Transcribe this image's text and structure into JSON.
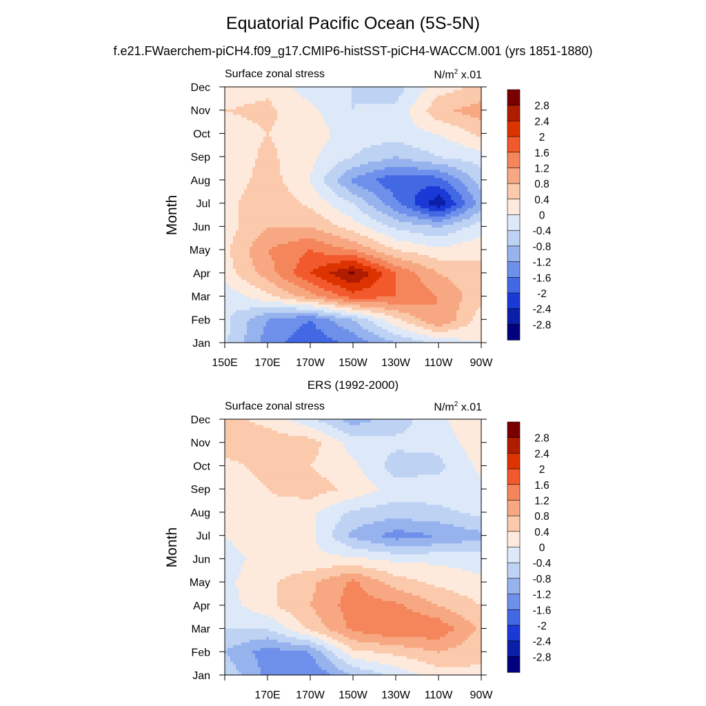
{
  "title": "Equatorial Pacific Ocean (5S-5N)",
  "subtitle": "f.e21.FWaerchem-piCH4.f09_g17.CMIP6-histSST-piCH4-WACCM.001 (yrs 1851-1880)",
  "colorbar": {
    "labels": [
      "2.8",
      "2.4",
      "2",
      "1.6",
      "1.2",
      "0.8",
      "0.4",
      "0",
      "-0.4",
      "-0.8",
      "-1.2",
      "-1.6",
      "-2",
      "-2.4",
      "-2.8"
    ],
    "colors": [
      "#7a0000",
      "#b01c00",
      "#dd3300",
      "#f25a2e",
      "#f5865c",
      "#f7a882",
      "#fbc9ab",
      "#feeadc",
      "#dde9f8",
      "#bed2f4",
      "#97b3ee",
      "#6f90ea",
      "#4268e4",
      "#1b39d6",
      "#0a1ea8",
      "#01007d"
    ]
  },
  "chart_data": [
    {
      "type": "heatmap",
      "panel_title": "",
      "left_string": "Surface zonal stress",
      "right_string": "N/m",
      "right_sup": "2",
      "right_suffix": " x.01",
      "ylabel": "Month",
      "x": [
        150,
        170,
        190,
        210,
        230,
        250,
        270
      ],
      "xticklabels": [
        "150E",
        "170E",
        "170W",
        "150W",
        "130W",
        "110W",
        "90W"
      ],
      "y": [
        "Jan",
        "Feb",
        "Mar",
        "Apr",
        "May",
        "Jun",
        "Jul",
        "Aug",
        "Sep",
        "Oct",
        "Nov",
        "Dec"
      ],
      "z": [
        [
          -0.3,
          -1.4,
          -1.9,
          -1.5,
          -0.8,
          -0.3,
          0.0
        ],
        [
          -0.3,
          -1.2,
          -1.6,
          -0.8,
          0.3,
          1.2,
          0.2
        ],
        [
          -0.3,
          0.3,
          1.0,
          1.8,
          1.6,
          1.2,
          0.5
        ],
        [
          0.2,
          1.0,
          2.0,
          2.9,
          1.6,
          0.8,
          0.5
        ],
        [
          0.3,
          1.2,
          1.6,
          1.2,
          0.4,
          0.1,
          0.3
        ],
        [
          0.2,
          0.8,
          0.8,
          0.2,
          -0.5,
          -0.8,
          -0.2
        ],
        [
          0.2,
          0.8,
          0.3,
          -0.4,
          -1.5,
          -2.7,
          -1.0
        ],
        [
          0.1,
          0.6,
          0.0,
          -1.3,
          -1.9,
          -1.8,
          -0.6
        ],
        [
          0.1,
          0.5,
          0.1,
          -0.4,
          -0.8,
          -0.4,
          -0.2
        ],
        [
          0.2,
          0.4,
          0.2,
          -0.2,
          -0.2,
          0.0,
          0.5
        ],
        [
          0.4,
          0.5,
          0.1,
          -0.4,
          -0.3,
          0.7,
          1.0
        ],
        [
          0.2,
          0.3,
          -0.2,
          -0.4,
          -0.6,
          0.2,
          0.5
        ]
      ],
      "zlim": [
        -2.8,
        2.8
      ]
    },
    {
      "type": "heatmap",
      "panel_title": "ERS (1992-2000)",
      "left_string": "Surface zonal stress",
      "right_string": "N/m",
      "right_sup": "2",
      "right_suffix": " x.01",
      "ylabel": "Month",
      "x": [
        150,
        170,
        190,
        210,
        230,
        250,
        270
      ],
      "xticklabels": [
        "",
        "170E",
        "170W",
        "150W",
        "130W",
        "110W",
        "90W"
      ],
      "y": [
        "Jan",
        "Feb",
        "Mar",
        "Apr",
        "May",
        "Jun",
        "Jul",
        "Aug",
        "Sep",
        "Oct",
        "Nov",
        "Dec"
      ],
      "z": [
        [
          -0.5,
          -1.3,
          -1.6,
          -0.8,
          -0.3,
          0.2,
          0.3
        ],
        [
          -0.8,
          -1.4,
          -1.2,
          0.3,
          0.5,
          0.8,
          0.5
        ],
        [
          -0.4,
          -0.4,
          0.5,
          1.3,
          1.6,
          1.5,
          0.7
        ],
        [
          -0.2,
          0.3,
          0.8,
          1.4,
          1.3,
          0.8,
          0.4
        ],
        [
          -0.1,
          0.3,
          0.7,
          1.3,
          0.6,
          0.3,
          0.1
        ],
        [
          -0.2,
          0.2,
          0.1,
          0.1,
          -0.1,
          -0.1,
          -0.2
        ],
        [
          0.0,
          0.3,
          0.1,
          -0.9,
          -1.4,
          -1.2,
          -0.9
        ],
        [
          0.3,
          0.3,
          0.1,
          -0.5,
          -0.6,
          -0.5,
          -0.3
        ],
        [
          0.2,
          0.4,
          0.6,
          0.3,
          -0.2,
          -0.2,
          -0.1
        ],
        [
          0.3,
          0.5,
          0.4,
          0.1,
          -0.6,
          -0.5,
          0.1
        ],
        [
          0.6,
          0.6,
          0.6,
          -0.2,
          -0.3,
          -0.3,
          0.3
        ],
        [
          0.5,
          0.3,
          -0.3,
          -1.0,
          -0.6,
          -0.1,
          0.4
        ]
      ],
      "zlim": [
        -2.8,
        2.8
      ]
    }
  ]
}
